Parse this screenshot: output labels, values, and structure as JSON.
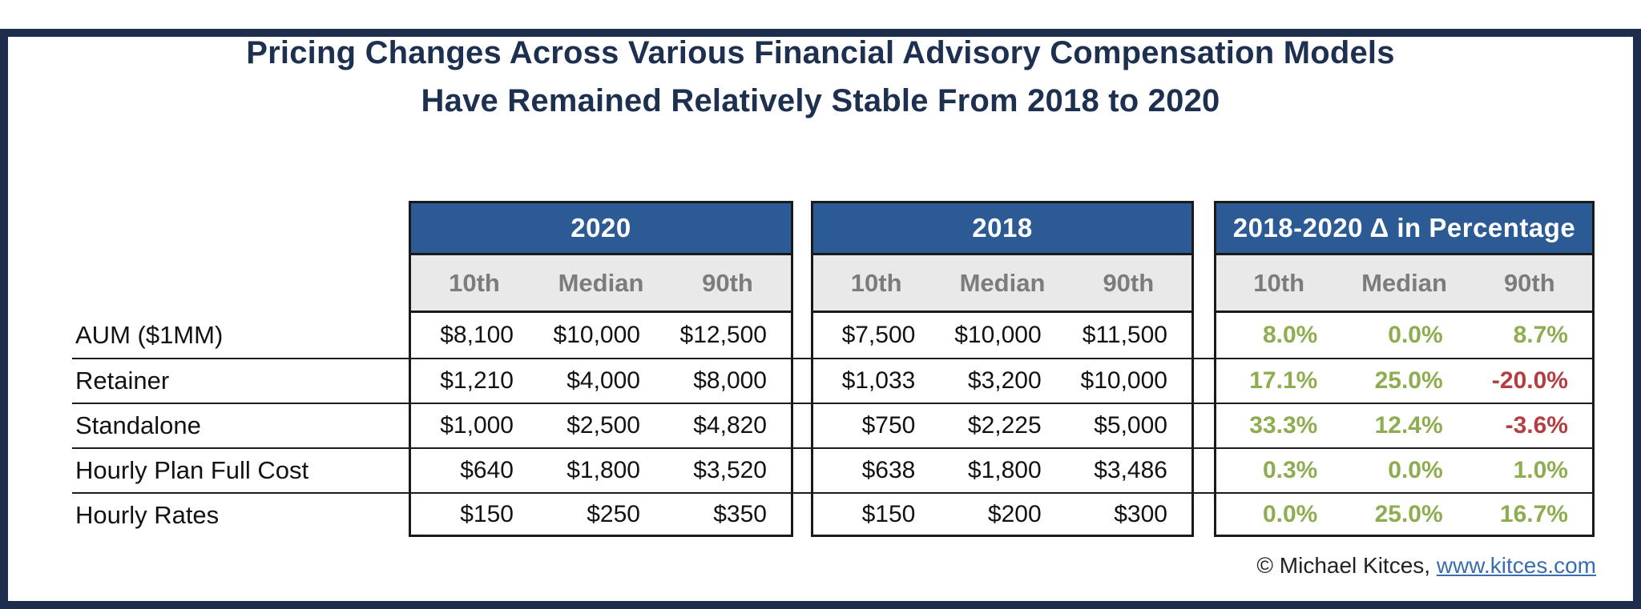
{
  "header": {
    "title_line1": "Pricing Changes Across Various Financial Advisory Compensation Models",
    "title_line2": "Have Remained Relatively Stable From 2018 to 2020",
    "title_color": "#1e3050"
  },
  "chart_data": {
    "type": "table",
    "title": "Pricing Changes Across Various Financial Advisory Compensation Models Have Remained Relatively Stable From 2018 to 2020",
    "row_labels": [
      "AUM ($1MM)",
      "Retainer",
      "Standalone",
      "Hourly Plan Full Cost",
      "Hourly Rates"
    ],
    "groups": [
      {
        "name": "2020",
        "columns": [
          "10th",
          "Median",
          "90th"
        ],
        "values": [
          [
            "$8,100",
            "$10,000",
            "$12,500"
          ],
          [
            "$1,210",
            "$4,000",
            "$8,000"
          ],
          [
            "$1,000",
            "$2,500",
            "$4,820"
          ],
          [
            "$640",
            "$1,800",
            "$3,520"
          ],
          [
            "$150",
            "$250",
            "$350"
          ]
        ]
      },
      {
        "name": "2018",
        "columns": [
          "10th",
          "Median",
          "90th"
        ],
        "values": [
          [
            "$7,500",
            "$10,000",
            "$11,500"
          ],
          [
            "$1,033",
            "$3,200",
            "$10,000"
          ],
          [
            "$750",
            "$2,225",
            "$5,000"
          ],
          [
            "$638",
            "$1,800",
            "$3,486"
          ],
          [
            "$150",
            "$200",
            "$300"
          ]
        ]
      },
      {
        "name": "2018-2020 Δ in Percentage",
        "columns": [
          "10th",
          "Median",
          "90th"
        ],
        "values": [
          [
            "8.0%",
            "0.0%",
            "8.7%"
          ],
          [
            "17.1%",
            "25.0%",
            "-20.0%"
          ],
          [
            "33.3%",
            "12.4%",
            "-3.6%"
          ],
          [
            "0.3%",
            "0.0%",
            "1.0%"
          ],
          [
            "0.0%",
            "25.0%",
            "16.7%"
          ]
        ]
      }
    ],
    "colors": {
      "frame": "#1e2c4e",
      "header_bg": "#2c5a94",
      "header_text": "#ffffff",
      "subheader_bg": "#e9e9e9",
      "subheader_text": "#7c7c7c",
      "positive": "#8dad50",
      "negative": "#b53e40",
      "border": "#1a1a1a",
      "link": "#3a6db0"
    }
  },
  "footer": {
    "copyright": "© Michael Kitces, ",
    "link": "www.kitces.com"
  }
}
